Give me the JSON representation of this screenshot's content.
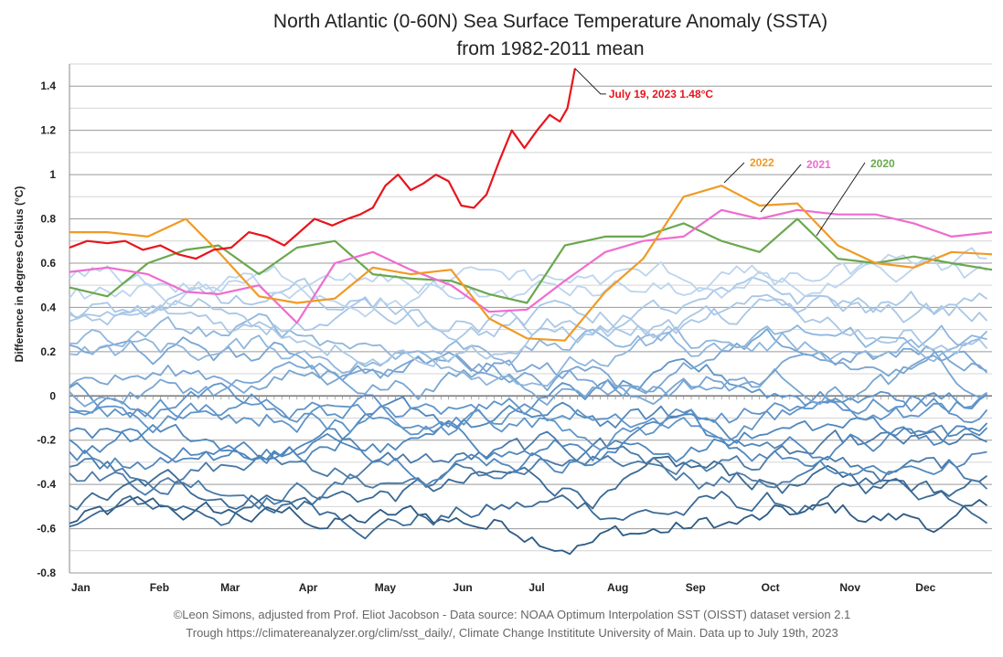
{
  "chart_data": {
    "type": "line",
    "title": "North Atlantic (0-60N) Sea Surface Temperature Anomaly (SSTA)",
    "subtitle": "from 1982-2011 mean",
    "xlabel": "",
    "ylabel": "Difference in degrees Celsius (°C)",
    "ylim": [
      -0.8,
      1.5
    ],
    "yticks": [
      -0.8,
      -0.6,
      -0.4,
      -0.2,
      0,
      0.2,
      0.4,
      0.6,
      0.8,
      1,
      1.2,
      1.4
    ],
    "ytick_labels": [
      "-0.8",
      "-0.6",
      "-0.4",
      "-0.2",
      "0",
      "0.2",
      "0.4",
      "0.6",
      "0.8",
      "1",
      "1.2",
      "1.4"
    ],
    "xlim_days": [
      0,
      365
    ],
    "months": [
      "Jan",
      "Feb",
      "Mar",
      "Apr",
      "May",
      "Jun",
      "Jul",
      "Aug",
      "Sep",
      "Oct",
      "Nov",
      "Dec"
    ],
    "month_start_days": [
      0,
      31,
      59,
      90,
      120,
      151,
      181,
      212,
      243,
      273,
      304,
      334
    ],
    "grid": true,
    "highlight_series": [
      {
        "name": "2023",
        "color": "#e8141c",
        "x": [
          0,
          7,
          15,
          22,
          29,
          36,
          43,
          50,
          57,
          64,
          71,
          78,
          85,
          90,
          97,
          104,
          110,
          115,
          120,
          125,
          130,
          135,
          140,
          145,
          150,
          155,
          160,
          165,
          170,
          175,
          180,
          185,
          190,
          194,
          197,
          200
        ],
        "y": [
          0.67,
          0.7,
          0.69,
          0.7,
          0.66,
          0.68,
          0.64,
          0.62,
          0.66,
          0.67,
          0.74,
          0.72,
          0.68,
          0.73,
          0.8,
          0.77,
          0.8,
          0.82,
          0.85,
          0.95,
          1.0,
          0.93,
          0.96,
          1.0,
          0.97,
          0.86,
          0.85,
          0.91,
          1.06,
          1.2,
          1.12,
          1.2,
          1.27,
          1.24,
          1.3,
          1.48
        ]
      },
      {
        "name": "2022",
        "color": "#f09a24",
        "x": [
          0,
          15,
          31,
          46,
          59,
          75,
          90,
          105,
          120,
          135,
          151,
          166,
          181,
          196,
          212,
          227,
          243,
          258,
          273,
          288,
          304,
          319,
          334,
          349,
          365
        ],
        "y": [
          0.74,
          0.74,
          0.72,
          0.8,
          0.65,
          0.45,
          0.42,
          0.44,
          0.58,
          0.55,
          0.57,
          0.35,
          0.26,
          0.25,
          0.47,
          0.62,
          0.9,
          0.95,
          0.86,
          0.87,
          0.68,
          0.6,
          0.58,
          0.65,
          0.64
        ]
      },
      {
        "name": "2021",
        "color": "#ef6ccf",
        "x": [
          0,
          15,
          31,
          46,
          59,
          75,
          90,
          105,
          120,
          135,
          151,
          166,
          181,
          196,
          212,
          227,
          243,
          258,
          273,
          288,
          304,
          319,
          334,
          349,
          365
        ],
        "y": [
          0.56,
          0.58,
          0.55,
          0.47,
          0.46,
          0.5,
          0.33,
          0.6,
          0.65,
          0.57,
          0.5,
          0.38,
          0.39,
          0.52,
          0.65,
          0.7,
          0.72,
          0.84,
          0.8,
          0.84,
          0.82,
          0.82,
          0.78,
          0.72,
          0.74
        ]
      },
      {
        "name": "2020",
        "color": "#6aa84f",
        "x": [
          0,
          15,
          31,
          46,
          59,
          75,
          90,
          105,
          120,
          135,
          151,
          166,
          181,
          196,
          212,
          227,
          243,
          258,
          273,
          288,
          304,
          319,
          334,
          349,
          365
        ],
        "y": [
          0.49,
          0.45,
          0.6,
          0.66,
          0.68,
          0.55,
          0.67,
          0.7,
          0.55,
          0.53,
          0.52,
          0.46,
          0.42,
          0.68,
          0.72,
          0.72,
          0.78,
          0.7,
          0.65,
          0.8,
          0.62,
          0.6,
          0.63,
          0.6,
          0.57
        ]
      }
    ],
    "background_series_note_levels": [
      -0.58,
      -0.5,
      -0.42,
      -0.35,
      -0.3,
      -0.25,
      -0.2,
      -0.15,
      -0.1,
      -0.05,
      0.0,
      0.05,
      0.1,
      0.15,
      0.2,
      0.25,
      0.3,
      0.35,
      0.38,
      0.45,
      0.5
    ],
    "annotations": [
      {
        "label": "July 19, 2023 1.48°C",
        "series": "2023",
        "color": "#e8141c"
      },
      {
        "label": "2022",
        "series": "2022",
        "color": "#f09a24"
      },
      {
        "label": "2021",
        "series": "2021",
        "color": "#ef6ccf"
      },
      {
        "label": "2020",
        "series": "2020",
        "color": "#6aa84f"
      }
    ]
  },
  "credits": {
    "line1": "©Leon Simons, adjusted from Prof. Eliot Jacobson - Data source: NOAA Optimum Interpolation SST (OISST) dataset version 2.1",
    "line2": "Trough https://climatereanalyzer.org/clim/sst_daily/, Climate Change Instititute University of Main. Data up to July 19th, 2023"
  }
}
